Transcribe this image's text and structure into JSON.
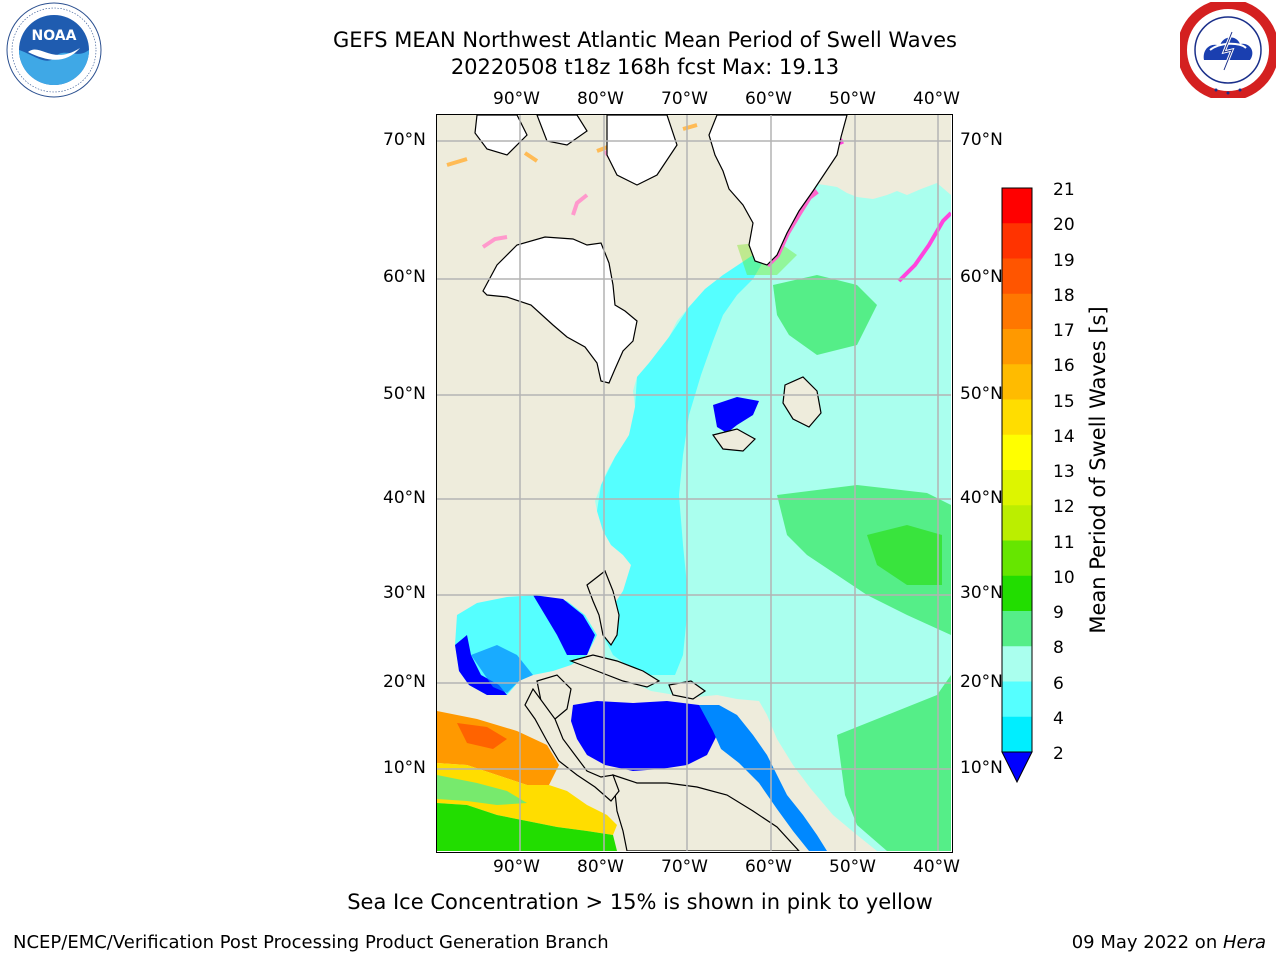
{
  "title": {
    "line1": "GEFS MEAN Northwest Atlantic Mean Period of Swell Waves",
    "line2": "20220508 t18z 168h fcst   Max: 19.13"
  },
  "logos": {
    "left": {
      "name": "noaa-logo",
      "text": "NOAA",
      "ring_text": "NATIONAL OCEANIC AND ATMOSPHERIC ADMINISTRATION · U.S. DEPARTMENT OF COMMERCE"
    },
    "right": {
      "name": "national-weather-service-logo",
      "ring_text": "NATIONAL WEATHER SERVICE"
    }
  },
  "map": {
    "projection_lon_range": [
      -100,
      -38
    ],
    "projection_lat_range": [
      2,
      72
    ],
    "lon_ticks": [
      "90°W",
      "80°W",
      "70°W",
      "60°W",
      "50°W",
      "40°W"
    ],
    "lat_ticks": [
      "70°N",
      "60°N",
      "50°N",
      "40°N",
      "30°N",
      "20°N",
      "10°N"
    ],
    "land_color": "#eeecdc",
    "grid_color": "#b3b3b3"
  },
  "colorbar": {
    "label": "Mean Period of Swell Waves [s]",
    "ticks": [
      "21",
      "20",
      "19",
      "18",
      "17",
      "16",
      "15",
      "14",
      "13",
      "12",
      "11",
      "10",
      "9",
      "8",
      "6",
      "4",
      "2"
    ],
    "colors": [
      "#ff0000",
      "#ff3300",
      "#ff5500",
      "#ff7700",
      "#ff9900",
      "#ffbb00",
      "#ffdd00",
      "#ffff00",
      "#ddf500",
      "#bbee00",
      "#66e600",
      "#22dd00",
      "#55ee88",
      "#aaffee",
      "#55ffff",
      "#00eeff",
      "#0088ff"
    ],
    "extend_color": "#0000ff"
  },
  "ice_note": "Sea Ice Concentration > 15% is shown in pink to yellow",
  "footer": {
    "left": "NCEP/EMC/Verification Post Processing Product Generation Branch",
    "right_date": "09 May 2022 on ",
    "right_host": "Hera"
  }
}
